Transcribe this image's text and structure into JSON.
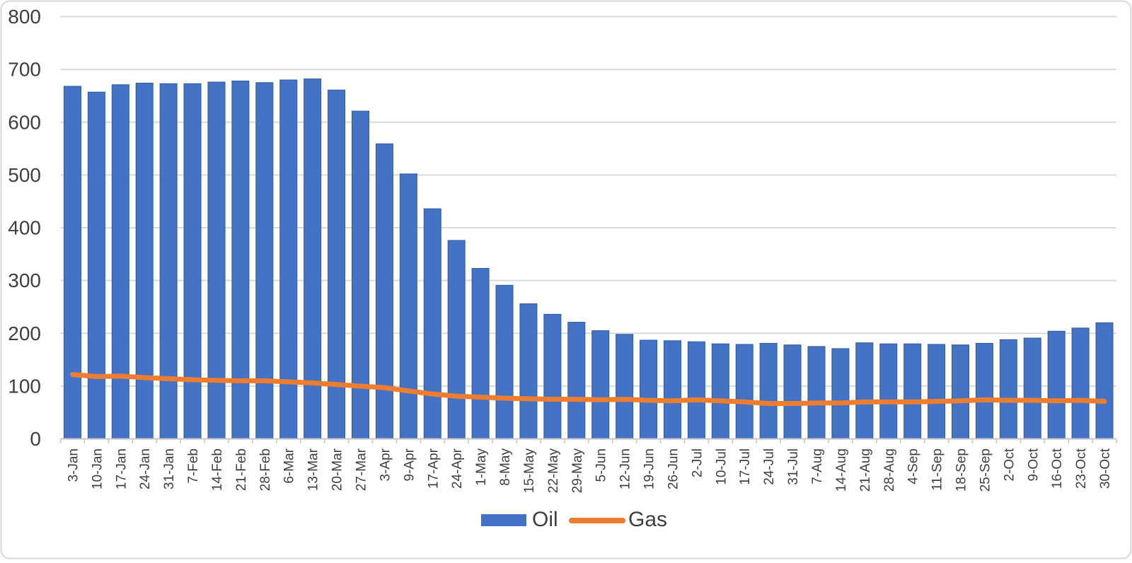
{
  "chart_data": {
    "type": "combo",
    "title": "",
    "xlabel": "",
    "ylabel": "",
    "ylim": [
      0,
      800
    ],
    "ytick_step": 100,
    "grid": true,
    "legend_position": "bottom",
    "categories": [
      "3-Jan",
      "10-Jan",
      "17-Jan",
      "24-Jan",
      "31-Jan",
      "7-Feb",
      "14-Feb",
      "21-Feb",
      "28-Feb",
      "6-Mar",
      "13-Mar",
      "20-Mar",
      "27-Mar",
      "3-Apr",
      "9-Apr",
      "17-Apr",
      "24-Apr",
      "1-May",
      "8-May",
      "15-May",
      "22-May",
      "29-May",
      "5-Jun",
      "12-Jun",
      "19-Jun",
      "26-Jun",
      "2-Jul",
      "10-Jul",
      "17-Jul",
      "24-Jul",
      "31-Jul",
      "7-Aug",
      "14-Aug",
      "21-Aug",
      "28-Aug",
      "4-Sep",
      "11-Sep",
      "18-Sep",
      "25-Sep",
      "2-Oct",
      "9-Oct",
      "16-Oct",
      "23-Oct",
      "30-Oct"
    ],
    "series": [
      {
        "name": "Oil",
        "type": "bar",
        "color": "#4472C4",
        "edge_color": "#2E5AA7",
        "values": [
          668,
          657,
          671,
          674,
          673,
          673,
          676,
          678,
          675,
          680,
          682,
          661,
          621,
          559,
          502,
          436,
          376,
          323,
          291,
          256,
          236,
          221,
          205,
          198,
          187,
          186,
          184,
          180,
          179,
          181,
          178,
          175,
          171,
          182,
          180,
          180,
          179,
          178,
          181,
          188,
          191,
          204,
          210,
          220
        ]
      },
      {
        "name": "Gas",
        "type": "line",
        "color": "#ED7D31",
        "values": [
          122,
          118,
          119,
          116,
          114,
          112,
          111,
          110,
          110,
          108,
          106,
          103,
          100,
          97,
          91,
          85,
          81,
          79,
          77,
          76,
          75,
          75,
          74,
          75,
          73,
          72,
          74,
          72,
          70,
          67,
          67,
          68,
          68,
          70,
          70,
          70,
          71,
          72,
          74,
          73,
          73,
          72,
          73,
          71
        ]
      }
    ]
  },
  "style": {
    "gridline_color": "#D9D9D9",
    "axis_line_color": "#C6C6C6",
    "tick_color": "#C6C6C6",
    "text_color": "#3f3f3f",
    "border_color": "#D8D8D8",
    "background_color": "#FFFFFF"
  }
}
